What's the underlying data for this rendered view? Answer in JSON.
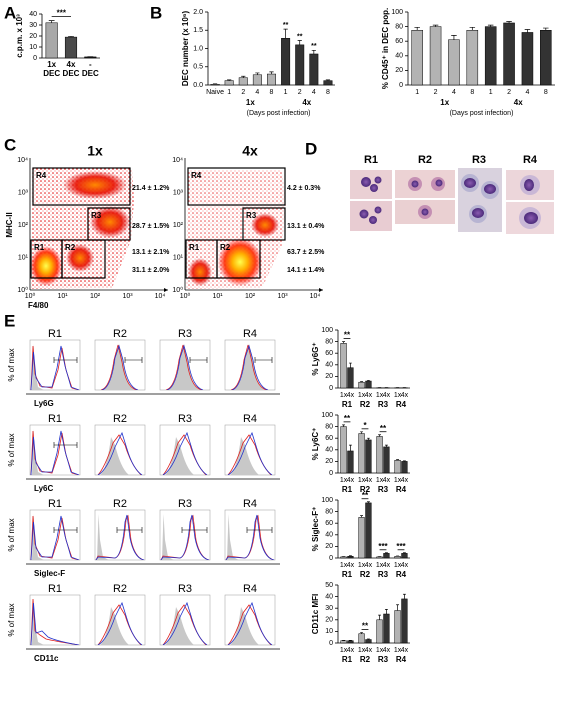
{
  "panel_labels": [
    "A",
    "B",
    "C",
    "D",
    "E"
  ],
  "chart_data": [
    {
      "type": "bar",
      "y_label": "c.p.m. x 10³",
      "categories": [
        "1x",
        "4x",
        "-"
      ],
      "category_sublabels": [
        "DEC",
        "DEC",
        "DEC"
      ],
      "values": [
        32,
        19,
        1
      ],
      "errors": [
        2,
        0.6,
        0.2
      ],
      "colors": [
        "#a8a8a8",
        "#4a4a4a",
        "#1a1a1a"
      ],
      "brackets": [
        {
          "text": "***",
          "categories": [
            "1x",
            "4x"
          ]
        }
      ],
      "ylim": [
        0,
        40
      ],
      "yticks": [
        0,
        10,
        20,
        30,
        40
      ]
    },
    {
      "type": "bar",
      "y_label": "DEC number (x 10⁶)",
      "categories": [
        "Naive",
        "1",
        "2",
        "4",
        "8",
        "1",
        "2",
        "4",
        "8"
      ],
      "values": [
        0.02,
        0.12,
        0.2,
        0.28,
        0.3,
        1.28,
        1.1,
        0.85,
        0.12
      ],
      "errors": [
        0.01,
        0.02,
        0.04,
        0.05,
        0.06,
        0.25,
        0.12,
        0.1,
        0.02
      ],
      "colors": [
        "#e6e6e6",
        "#b3b3b3",
        "#b3b3b3",
        "#b3b3b3",
        "#b3b3b3",
        "#333333",
        "#333333",
        "#333333",
        "#333333"
      ],
      "groups": [
        "1x",
        "4x"
      ],
      "x_label": "(Days post infection)",
      "significance": [
        null,
        null,
        null,
        null,
        null,
        "**",
        "**",
        "**",
        null
      ],
      "ylim": [
        0,
        2
      ],
      "yticks": [
        {
          "value": 0,
          "label": "0.0"
        },
        0.5,
        {
          "value": 1,
          "label": "1.0"
        },
        1.5,
        {
          "value": 2,
          "label": "2.0"
        }
      ]
    },
    {
      "type": "bar",
      "y_label": "% CD45⁺ in DEC pop.",
      "categories": [
        "1",
        "2",
        "4",
        "8",
        "1",
        "2",
        "4",
        "8"
      ],
      "values": [
        75,
        80,
        62,
        75,
        80,
        85,
        72,
        75
      ],
      "errors": [
        4,
        2,
        6,
        4,
        2,
        2,
        4,
        3
      ],
      "colors": [
        "#b3b3b3",
        "#b3b3b3",
        "#b3b3b3",
        "#b3b3b3",
        "#333333",
        "#333333",
        "#333333",
        "#333333"
      ],
      "groups": [
        "1x",
        "4x"
      ],
      "x_label": "(Days post infection)",
      "ylim": [
        0,
        100
      ],
      "yticks": [
        0,
        20,
        40,
        60,
        80,
        100
      ]
    },
    {
      "type": "bar",
      "y_label": "% Ly6G⁺",
      "categories": [
        "R1",
        "R2",
        "R3",
        "R4"
      ],
      "series": [
        {
          "name": "1x",
          "color": "#b3b3b3",
          "values": [
            77,
            10,
            0.5,
            0.5
          ],
          "errors": [
            3,
            1,
            0.2,
            0.2
          ]
        },
        {
          "name": "4x",
          "color": "#333333",
          "values": [
            35,
            12,
            0.5,
            0.5
          ],
          "errors": [
            8,
            1,
            0.2,
            0.2
          ]
        }
      ],
      "significance": [
        "**",
        null,
        null,
        null
      ],
      "ylim": [
        0,
        100
      ],
      "yticks": [
        0,
        20,
        40,
        60,
        80,
        100
      ]
    },
    {
      "type": "bar",
      "y_label": "% Ly6C⁺",
      "categories": [
        "R1",
        "R2",
        "R3",
        "R4"
      ],
      "series": [
        {
          "name": "1x",
          "color": "#b3b3b3",
          "values": [
            80,
            68,
            63,
            22
          ],
          "errors": [
            3,
            3,
            3,
            1
          ]
        },
        {
          "name": "4x",
          "color": "#333333",
          "values": [
            38,
            57,
            45,
            20
          ],
          "errors": [
            10,
            3,
            3,
            1
          ]
        }
      ],
      "significance": [
        "**",
        "*",
        "**",
        null
      ],
      "ylim": [
        0,
        100
      ],
      "yticks": [
        0,
        20,
        40,
        60,
        80,
        100
      ]
    },
    {
      "type": "bar",
      "y_label": "% Siglec-F⁺",
      "categories": [
        "R1",
        "R2",
        "R3",
        "R4"
      ],
      "series": [
        {
          "name": "1x",
          "color": "#b3b3b3",
          "values": [
            2,
            70,
            2,
            3
          ],
          "errors": [
            0.5,
            3,
            0.5,
            0.5
          ]
        },
        {
          "name": "4x",
          "color": "#333333",
          "values": [
            3,
            95,
            8,
            8
          ],
          "errors": [
            1,
            2,
            1,
            1
          ]
        }
      ],
      "significance": [
        null,
        "**",
        "***",
        "***"
      ],
      "ylim": [
        0,
        100
      ],
      "yticks": [
        0,
        20,
        40,
        60,
        80,
        100
      ]
    },
    {
      "type": "bar",
      "y_label": "CD11c MFI",
      "categories": [
        "R1",
        "R2",
        "R3",
        "R4"
      ],
      "series": [
        {
          "name": "1x",
          "color": "#b3b3b3",
          "values": [
            2,
            8,
            20,
            28
          ],
          "errors": [
            0.3,
            1,
            4,
            5
          ]
        },
        {
          "name": "4x",
          "color": "#333333",
          "values": [
            2,
            3,
            25,
            38
          ],
          "errors": [
            0.3,
            0.5,
            4,
            4
          ]
        }
      ],
      "significance": [
        null,
        "**",
        null,
        null
      ],
      "ylim": [
        0,
        50
      ],
      "yticks": [
        0,
        10,
        20,
        30,
        40,
        50
      ]
    }
  ],
  "flow": {
    "y_label": "MHC-II",
    "x_label": "F4/80",
    "ticks": [
      "10⁰",
      "10¹",
      "10²",
      "10³",
      "10⁴"
    ],
    "plots": [
      {
        "title": "1x",
        "gates": [
          {
            "name": "R4",
            "label": "21.4 ± 1.2%"
          },
          {
            "name": "R3",
            "label": "28.7 ± 1.5%"
          },
          {
            "name": "R2",
            "label": "13.1 ± 2.1%"
          },
          {
            "name": "R1",
            "label": "31.1 ± 2.0%"
          }
        ]
      },
      {
        "title": "4x",
        "gates": [
          {
            "name": "R4",
            "label": "4.2 ± 0.3%"
          },
          {
            "name": "R3",
            "label": "13.1 ± 0.4%"
          },
          {
            "name": "R2",
            "label": "63.7 ± 2.5%"
          },
          {
            "name": "R1",
            "label": "14.1 ± 1.4%"
          }
        ]
      }
    ]
  },
  "cytology": {
    "labels": [
      "R1",
      "R2",
      "R3",
      "R4"
    ]
  },
  "histograms": {
    "y_label": "% of max",
    "columns": [
      "R1",
      "R2",
      "R3",
      "R4"
    ],
    "markers": [
      "Ly6G",
      "Ly6C",
      "Siglec-F",
      "CD11c"
    ]
  }
}
